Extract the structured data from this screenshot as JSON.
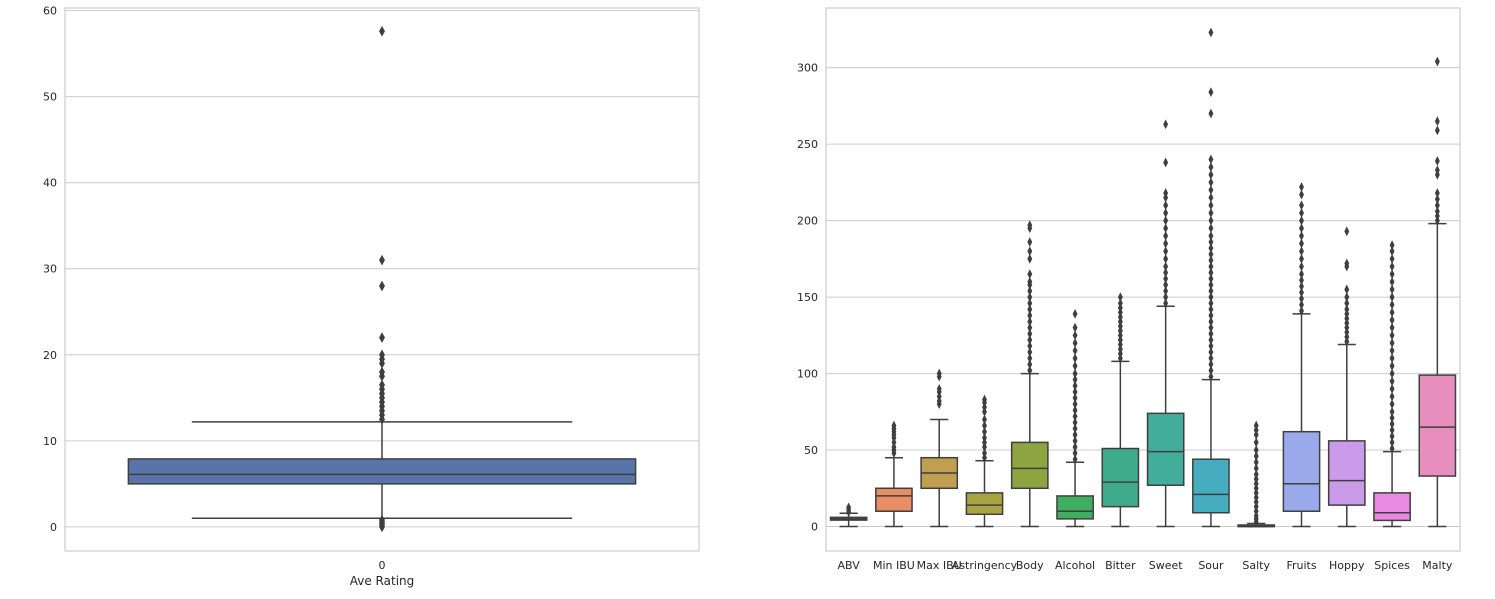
{
  "chart_data": [
    {
      "type": "box",
      "title": "",
      "xlabel": "Ave Rating",
      "ylabel": "",
      "ylim": [
        -2.8,
        60.3
      ],
      "grid": "horizontal",
      "y_ticks": [
        0,
        10,
        20,
        30,
        40,
        50,
        60
      ],
      "y_tick_labels": [
        "0",
        "10",
        "20",
        "30",
        "40",
        "50",
        "60"
      ],
      "categories": [
        "0"
      ],
      "boxes": [
        {
          "label": "0",
          "color": "#5874a8",
          "q1": 5.0,
          "median": 6.1,
          "q3": 7.9,
          "whisker_low": 1.0,
          "whisker_high": 12.2,
          "outliers_high": [
            12.5,
            13.0,
            13.5,
            14.0,
            14.5,
            15.0,
            15.5,
            16.0,
            16.5,
            17.5,
            18.0,
            19.0,
            19.5,
            20.0,
            22.0,
            28.0,
            31.0,
            57.6
          ],
          "outliers_low": [
            0.0,
            0.2,
            0.4,
            0.6,
            0.8
          ]
        }
      ]
    },
    {
      "type": "box",
      "title": "",
      "xlabel": "",
      "ylabel": "",
      "ylim": [
        -16,
        339
      ],
      "grid": "horizontal",
      "y_ticks": [
        0,
        50,
        100,
        150,
        200,
        250,
        300
      ],
      "y_tick_labels": [
        "0",
        "50",
        "100",
        "150",
        "200",
        "250",
        "300"
      ],
      "categories": [
        "ABV",
        "Min IBU",
        "Max IBU",
        "Astringency",
        "Body",
        "Alcohol",
        "Bitter",
        "Sweet",
        "Sour",
        "Salty",
        "Fruits",
        "Hoppy",
        "Spices",
        "Malty"
      ],
      "boxes": [
        {
          "label": "ABV",
          "color": "#4c72b0",
          "q1": 4.2,
          "median": 5.0,
          "q3": 6.0,
          "whisker_low": 0,
          "whisker_high": 8.7,
          "outliers_high": [
            9.5,
            11,
            12.5
          ],
          "outliers_low": []
        },
        {
          "label": "Min IBU",
          "color": "#e88d64",
          "q1": 10,
          "median": 20,
          "q3": 25,
          "whisker_low": 0,
          "whisker_high": 45,
          "outliers_high": [
            48,
            50,
            52,
            55,
            58,
            60,
            62,
            64,
            66
          ],
          "outliers_low": []
        },
        {
          "label": "Max IBU",
          "color": "#c0a050",
          "q1": 25,
          "median": 35,
          "q3": 45,
          "whisker_low": 0,
          "whisker_high": 70,
          "outliers_high": [
            80,
            82,
            85,
            88,
            90,
            98,
            100
          ],
          "outliers_low": []
        },
        {
          "label": "Astringency",
          "color": "#a9a343",
          "q1": 8,
          "median": 14,
          "q3": 22,
          "whisker_low": 0,
          "whisker_high": 43,
          "outliers_high": [
            45,
            48,
            52,
            55,
            58,
            62,
            66,
            70,
            75,
            78,
            81,
            83
          ],
          "outliers_low": []
        },
        {
          "label": "Body",
          "color": "#8ca540",
          "q1": 25,
          "median": 38,
          "q3": 55,
          "whisker_low": 0,
          "whisker_high": 100,
          "outliers_high": [
            102,
            106,
            110,
            114,
            118,
            122,
            126,
            130,
            134,
            138,
            142,
            146,
            150,
            154,
            158,
            160,
            165,
            175,
            180,
            186,
            195,
            197
          ],
          "outliers_low": []
        },
        {
          "label": "Alcohol",
          "color": "#3fae5f",
          "q1": 5,
          "median": 10,
          "q3": 20,
          "whisker_low": 0,
          "whisker_high": 42,
          "outliers_high": [
            44,
            48,
            52,
            56,
            60,
            64,
            68,
            72,
            76,
            80,
            84,
            88,
            92,
            96,
            100,
            105,
            110,
            115,
            120,
            125,
            130,
            139
          ],
          "outliers_low": []
        },
        {
          "label": "Bitter",
          "color": "#40ab8a",
          "q1": 13,
          "median": 29,
          "q3": 51,
          "whisker_low": 0,
          "whisker_high": 108,
          "outliers_high": [
            110,
            113,
            116,
            119,
            122,
            125,
            128,
            131,
            134,
            137,
            140,
            143,
            146,
            150
          ],
          "outliers_low": []
        },
        {
          "label": "Sweet",
          "color": "#42ad9a",
          "q1": 27,
          "median": 49,
          "q3": 74,
          "whisker_low": 0,
          "whisker_high": 144,
          "outliers_high": [
            146,
            150,
            154,
            158,
            162,
            166,
            170,
            175,
            180,
            185,
            190,
            195,
            200,
            205,
            210,
            215,
            218,
            238,
            263
          ],
          "outliers_low": []
        },
        {
          "label": "Sour",
          "color": "#46adc0",
          "q1": 9,
          "median": 21,
          "q3": 44,
          "whisker_low": 0,
          "whisker_high": 96,
          "outliers_high": [
            98,
            102,
            106,
            110,
            114,
            118,
            122,
            126,
            130,
            134,
            138,
            142,
            146,
            150,
            154,
            158,
            162,
            166,
            170,
            174,
            178,
            182,
            186,
            190,
            195,
            200,
            205,
            210,
            215,
            220,
            225,
            230,
            235,
            240,
            270,
            284,
            323
          ],
          "outliers_low": []
        },
        {
          "label": "Salty",
          "color": "#4fa2bd",
          "q1": 0,
          "median": 0,
          "q3": 1,
          "whisker_low": 0,
          "whisker_high": 2,
          "outliers_high": [
            3,
            5,
            7,
            10,
            13,
            16,
            19,
            22,
            25,
            28,
            31,
            34,
            38,
            42,
            46,
            50,
            55,
            60,
            63,
            66
          ],
          "outliers_low": []
        },
        {
          "label": "Fruits",
          "color": "#9aa9ea",
          "q1": 10,
          "median": 28,
          "q3": 62,
          "whisker_low": 0,
          "whisker_high": 139,
          "outliers_high": [
            141,
            145,
            149,
            153,
            157,
            161,
            165,
            170,
            175,
            180,
            185,
            190,
            195,
            200,
            205,
            210,
            217,
            222
          ],
          "outliers_low": []
        },
        {
          "label": "Hoppy",
          "color": "#c99be9",
          "q1": 14,
          "median": 30,
          "q3": 56,
          "whisker_low": 0,
          "whisker_high": 119,
          "outliers_high": [
            121,
            124,
            127,
            130,
            133,
            136,
            139,
            142,
            146,
            150,
            155,
            170,
            172,
            193
          ],
          "outliers_low": []
        },
        {
          "label": "Spices",
          "color": "#e98ae2",
          "q1": 4,
          "median": 9,
          "q3": 22,
          "whisker_low": 0,
          "whisker_high": 49,
          "outliers_high": [
            51,
            55,
            59,
            63,
            67,
            71,
            75,
            80,
            85,
            90,
            95,
            100,
            105,
            110,
            115,
            120,
            125,
            130,
            135,
            140,
            145,
            150,
            155,
            160,
            165,
            170,
            175,
            180,
            184
          ],
          "outliers_low": []
        },
        {
          "label": "Malty",
          "color": "#e88ebf",
          "q1": 33,
          "median": 65,
          "q3": 99,
          "whisker_low": 0,
          "whisker_high": 198,
          "outliers_high": [
            200,
            203,
            206,
            210,
            214,
            218,
            230,
            233,
            239,
            259,
            265,
            304
          ],
          "outliers_low": []
        }
      ]
    }
  ]
}
